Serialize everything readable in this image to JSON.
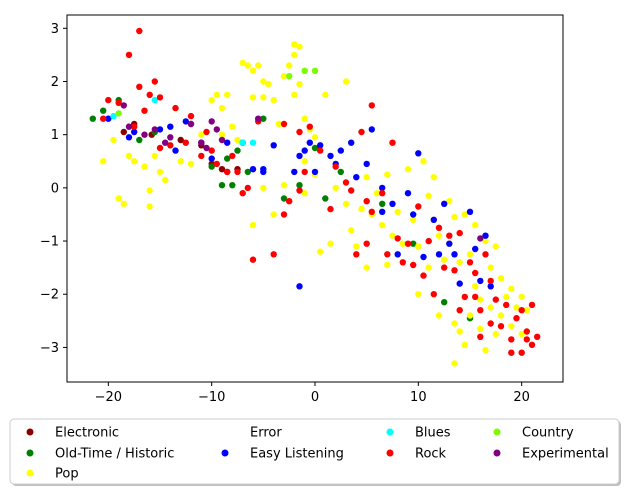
{
  "chart_data": {
    "type": "scatter",
    "title": "",
    "xlabel": "",
    "ylabel": "",
    "xlim": [
      -24,
      24
    ],
    "ylim": [
      -3.65,
      3.25
    ],
    "xticks": [
      -20,
      -10,
      0,
      10,
      20
    ],
    "yticks": [
      -3,
      -2,
      -1,
      0,
      1,
      2,
      3
    ],
    "grid": false,
    "legend_placement": "below",
    "series": [
      {
        "name": "Electronic",
        "color": "#8b0000",
        "points": [
          [
            -18.5,
            1.05
          ],
          [
            -17.5,
            1.2
          ],
          [
            -15.8,
            1.0
          ],
          [
            -10,
            0.45
          ],
          [
            -8.5,
            0.3
          ],
          [
            -7.5,
            0.35
          ],
          [
            -9,
            0.35
          ],
          [
            -11,
            0.8
          ],
          [
            -13,
            0.9
          ]
        ]
      },
      {
        "name": "Old-Time / Historic",
        "color": "#008000",
        "points": [
          [
            -21.5,
            1.3
          ],
          [
            -20.5,
            1.45
          ],
          [
            -19,
            1.65
          ],
          [
            -17,
            0.9
          ],
          [
            -15.5,
            1.05
          ],
          [
            -12,
            1.2
          ],
          [
            -10,
            0.4
          ],
          [
            -9,
            0.05
          ],
          [
            -8,
            0.05
          ],
          [
            -7.5,
            0.7
          ],
          [
            -8.5,
            0.55
          ],
          [
            -6.5,
            0.3
          ],
          [
            -5,
            1.3
          ],
          [
            -3,
            -0.2
          ],
          [
            -1.5,
            0.05
          ],
          [
            0,
            0.75
          ],
          [
            1,
            -0.2
          ],
          [
            2.5,
            0.3
          ],
          [
            6.5,
            -0.3
          ],
          [
            9.5,
            -1.05
          ],
          [
            12.5,
            -2.15
          ],
          [
            15,
            -2.45
          ]
        ]
      },
      {
        "name": "Pop",
        "color": "#ffff00",
        "points": [
          [
            -20.5,
            0.5
          ],
          [
            -19.5,
            0.9
          ],
          [
            -19,
            -0.2
          ],
          [
            -18.5,
            -0.3
          ],
          [
            -18,
            0.6
          ],
          [
            -17.5,
            0.5
          ],
          [
            -16.5,
            0.4
          ],
          [
            -16,
            -0.05
          ],
          [
            -16,
            -0.35
          ],
          [
            -15.5,
            0.6
          ],
          [
            -15,
            0.3
          ],
          [
            -14.5,
            0.15
          ],
          [
            -13,
            0.5
          ],
          [
            -12,
            0.45
          ],
          [
            -11,
            1.0
          ],
          [
            -10,
            1.65
          ],
          [
            -9.5,
            1.75
          ],
          [
            -9,
            1.5
          ],
          [
            -8.5,
            1.75
          ],
          [
            -8,
            1.15
          ],
          [
            -7.5,
            0.9
          ],
          [
            -7,
            2.35
          ],
          [
            -6.5,
            2.3
          ],
          [
            -6,
            2.2
          ],
          [
            -6,
            1.7
          ],
          [
            -5.5,
            2.3
          ],
          [
            -5,
            1.7
          ],
          [
            -5,
            2.0
          ],
          [
            -4.5,
            1.95
          ],
          [
            -4,
            1.65
          ],
          [
            -3.5,
            1.2
          ],
          [
            -3,
            2.1
          ],
          [
            -2.5,
            2.3
          ],
          [
            -2,
            2.5
          ],
          [
            -2,
            2.7
          ],
          [
            -1.5,
            2.65
          ],
          [
            -1.5,
            1.95
          ],
          [
            -2,
            1.75
          ],
          [
            -1,
            1.3
          ],
          [
            -0.5,
            1.1
          ],
          [
            0,
            0.95
          ],
          [
            1,
            1.75
          ],
          [
            -6,
            -0.7
          ],
          [
            -5,
            0.0
          ],
          [
            -4,
            -0.5
          ],
          [
            -3,
            0.05
          ],
          [
            -2,
            0.3
          ],
          [
            -1,
            -0.1
          ],
          [
            0,
            0.25
          ],
          [
            0.5,
            -1.2
          ],
          [
            1.5,
            -1.05
          ],
          [
            2,
            0.0
          ],
          [
            3,
            -0.3
          ],
          [
            3.5,
            -0.8
          ],
          [
            4,
            -1.1
          ],
          [
            4.5,
            -0.4
          ],
          [
            5,
            0.2
          ],
          [
            5,
            -1.5
          ],
          [
            5.5,
            -0.5
          ],
          [
            6,
            -0.1
          ],
          [
            6.5,
            -0.7
          ],
          [
            7,
            -1.45
          ],
          [
            7,
            0.25
          ],
          [
            7.5,
            -0.9
          ],
          [
            8,
            -0.45
          ],
          [
            8.5,
            -1.05
          ],
          [
            9,
            0.35
          ],
          [
            9.5,
            -0.6
          ],
          [
            10,
            -1.1
          ],
          [
            10,
            -2.0
          ],
          [
            10.5,
            0.5
          ],
          [
            11,
            -0.15
          ],
          [
            11,
            -1.5
          ],
          [
            11.5,
            -0.6
          ],
          [
            11.5,
            0.2
          ],
          [
            12,
            -0.9
          ],
          [
            12,
            -2.4
          ],
          [
            12.5,
            -1.35
          ],
          [
            13,
            -0.25
          ],
          [
            13,
            -1.05
          ],
          [
            13.5,
            -0.55
          ],
          [
            13.5,
            -2.55
          ],
          [
            13.5,
            -3.3
          ],
          [
            14,
            -1.4
          ],
          [
            14,
            -2.7
          ],
          [
            14.5,
            -0.5
          ],
          [
            14.5,
            -2.95
          ],
          [
            15,
            -1.25
          ],
          [
            15,
            -2.4
          ],
          [
            15.5,
            -0.7
          ],
          [
            15.5,
            -1.85
          ],
          [
            16,
            -2.1
          ],
          [
            16,
            -2.65
          ],
          [
            16.5,
            -1.0
          ],
          [
            16.5,
            -3.05
          ],
          [
            17,
            -1.5
          ],
          [
            17,
            -2.25
          ],
          [
            17.5,
            -1.1
          ],
          [
            17.5,
            -2.75
          ],
          [
            18,
            -1.7
          ],
          [
            18,
            -2.4
          ],
          [
            18.5,
            -2.05
          ],
          [
            19,
            -1.9
          ],
          [
            19,
            -2.6
          ],
          [
            19.5,
            -2.25
          ],
          [
            20,
            -2.05
          ],
          [
            20,
            -2.75
          ],
          [
            20.5,
            -2.3
          ],
          [
            3,
            2.0
          ],
          [
            -9,
            1.0
          ],
          [
            -1,
            0.5
          ]
        ]
      },
      {
        "name": "Error",
        "color": "#ffffff",
        "points": [
          [
            0.6,
            0.05
          ]
        ]
      },
      {
        "name": "Easy Listening",
        "color": "#0000ff",
        "points": [
          [
            -20,
            1.3
          ],
          [
            -18,
            0.95
          ],
          [
            -17.5,
            1.05
          ],
          [
            -15,
            1.1
          ],
          [
            -14,
            1.15
          ],
          [
            -13.5,
            0.7
          ],
          [
            -12.5,
            1.25
          ],
          [
            -11,
            0.85
          ],
          [
            -10,
            0.55
          ],
          [
            -8.5,
            0.85
          ],
          [
            -7,
            0.85
          ],
          [
            -6,
            0.35
          ],
          [
            -5,
            0.3
          ],
          [
            -4,
            0.8
          ],
          [
            -2,
            0.3
          ],
          [
            -1.5,
            0.6
          ],
          [
            -1,
            0.7
          ],
          [
            -0.5,
            0.85
          ],
          [
            0,
            0.3
          ],
          [
            0.5,
            0.8
          ],
          [
            1.5,
            0.6
          ],
          [
            2,
            0.45
          ],
          [
            2.5,
            0.7
          ],
          [
            3.5,
            0.85
          ],
          [
            4,
            0.2
          ],
          [
            5,
            0.45
          ],
          [
            5.5,
            1.1
          ],
          [
            6.5,
            0.0
          ],
          [
            6.5,
            -0.45
          ],
          [
            7.5,
            -0.3
          ],
          [
            8,
            -1.25
          ],
          [
            9,
            -0.1
          ],
          [
            9.5,
            -0.5
          ],
          [
            10,
            0.65
          ],
          [
            10.5,
            -1.3
          ],
          [
            11.5,
            -0.6
          ],
          [
            12,
            -1.25
          ],
          [
            12.5,
            -0.3
          ],
          [
            13,
            -1.05
          ],
          [
            13.5,
            -1.25
          ],
          [
            14,
            -1.8
          ],
          [
            15,
            -0.45
          ],
          [
            15.5,
            -1.15
          ],
          [
            16,
            -1.75
          ],
          [
            16.5,
            -0.9
          ],
          [
            17,
            -1.85
          ],
          [
            -1.5,
            -1.85
          ],
          [
            -5,
            0.35
          ]
        ]
      },
      {
        "name": "Blues",
        "color": "#00ffff",
        "points": [
          [
            -19.5,
            1.35
          ],
          [
            -15.5,
            1.65
          ],
          [
            -7,
            0.85
          ],
          [
            -6,
            0.85
          ]
        ]
      },
      {
        "name": "Rock",
        "color": "#ff0000",
        "points": [
          [
            -20.5,
            1.3
          ],
          [
            -20,
            1.65
          ],
          [
            -19,
            1.6
          ],
          [
            -18,
            2.5
          ],
          [
            -17,
            2.95
          ],
          [
            -17,
            1.9
          ],
          [
            -17.5,
            1.15
          ],
          [
            -16.5,
            1.45
          ],
          [
            -16,
            1.75
          ],
          [
            -15.5,
            2.0
          ],
          [
            -15,
            1.7
          ],
          [
            -15,
            0.75
          ],
          [
            -14,
            0.8
          ],
          [
            -13.5,
            1.5
          ],
          [
            -12.5,
            0.85
          ],
          [
            -12,
            1.35
          ],
          [
            -11,
            0.6
          ],
          [
            -10.5,
            1.05
          ],
          [
            -10,
            0.7
          ],
          [
            -9.5,
            0.45
          ],
          [
            -8.5,
            0.3
          ],
          [
            -8,
            0.6
          ],
          [
            -7.5,
            0.3
          ],
          [
            -7,
            -0.1
          ],
          [
            -6.5,
            0.0
          ],
          [
            -6,
            -1.35
          ],
          [
            -5.5,
            1.25
          ],
          [
            -4,
            -1.25
          ],
          [
            -3,
            1.2
          ],
          [
            -3,
            -0.5
          ],
          [
            -2.5,
            -0.25
          ],
          [
            -1.5,
            1.05
          ],
          [
            -1.5,
            -0.05
          ],
          [
            -1,
            0.3
          ],
          [
            -0.5,
            1.15
          ],
          [
            0.5,
            0.7
          ],
          [
            1.5,
            -0.4
          ],
          [
            2,
            0.4
          ],
          [
            3,
            0.1
          ],
          [
            3.5,
            -0.05
          ],
          [
            4,
            -1.25
          ],
          [
            4.5,
            1.05
          ],
          [
            5,
            -0.25
          ],
          [
            5,
            -1.05
          ],
          [
            5.5,
            1.55
          ],
          [
            5.5,
            -0.45
          ],
          [
            6.5,
            -0.1
          ],
          [
            7,
            -1.25
          ],
          [
            7.5,
            0.85
          ],
          [
            8,
            -0.95
          ],
          [
            8.5,
            -1.4
          ],
          [
            9,
            -1.05
          ],
          [
            9.5,
            -1.45
          ],
          [
            10,
            -0.35
          ],
          [
            10.5,
            -1.65
          ],
          [
            11,
            -1.0
          ],
          [
            11.5,
            -2.0
          ],
          [
            12,
            -0.75
          ],
          [
            12.5,
            -1.5
          ],
          [
            13,
            -0.9
          ],
          [
            13.5,
            -1.55
          ],
          [
            14,
            -0.85
          ],
          [
            14,
            -2.3
          ],
          [
            14.5,
            -2.05
          ],
          [
            15,
            -1.4
          ],
          [
            15.5,
            -1.6
          ],
          [
            15.5,
            -2.05
          ],
          [
            16,
            -2.3
          ],
          [
            16,
            -2.8
          ],
          [
            16.5,
            -1.25
          ],
          [
            17,
            -1.75
          ],
          [
            17,
            -2.55
          ],
          [
            17.5,
            -2.1
          ],
          [
            18,
            -2.6
          ],
          [
            18.5,
            -2.2
          ],
          [
            19,
            -2.85
          ],
          [
            19,
            -3.1
          ],
          [
            19.5,
            -2.45
          ],
          [
            20,
            -2.3
          ],
          [
            20,
            -3.1
          ],
          [
            20.5,
            -2.7
          ],
          [
            20.5,
            -2.85
          ],
          [
            21,
            -2.2
          ],
          [
            21,
            -2.95
          ],
          [
            21.5,
            -2.8
          ]
        ]
      },
      {
        "name": "Country",
        "color": "#7cfc00",
        "points": [
          [
            -2.5,
            2.1
          ],
          [
            -1,
            2.2
          ],
          [
            0,
            2.2
          ],
          [
            -19,
            1.4
          ]
        ]
      },
      {
        "name": "Experimental",
        "color": "#800080",
        "points": [
          [
            -18.5,
            1.55
          ],
          [
            -18,
            1.15
          ],
          [
            -16.5,
            1.0
          ],
          [
            -15.5,
            1.1
          ],
          [
            -14.5,
            0.85
          ],
          [
            -14,
            0.95
          ],
          [
            -12,
            1.2
          ],
          [
            -11,
            0.85
          ],
          [
            -10,
            1.25
          ],
          [
            -9.5,
            1.1
          ],
          [
            -9,
            0.9
          ],
          [
            -5.5,
            1.3
          ],
          [
            16,
            -0.95
          ],
          [
            -10.5,
            0.75
          ]
        ]
      }
    ],
    "legend": [
      [
        "Electronic",
        "Error",
        "Blues",
        "Country"
      ],
      [
        "Old-Time / Historic",
        "Easy Listening",
        "Rock",
        "Experimental"
      ],
      [
        "Pop"
      ]
    ]
  }
}
